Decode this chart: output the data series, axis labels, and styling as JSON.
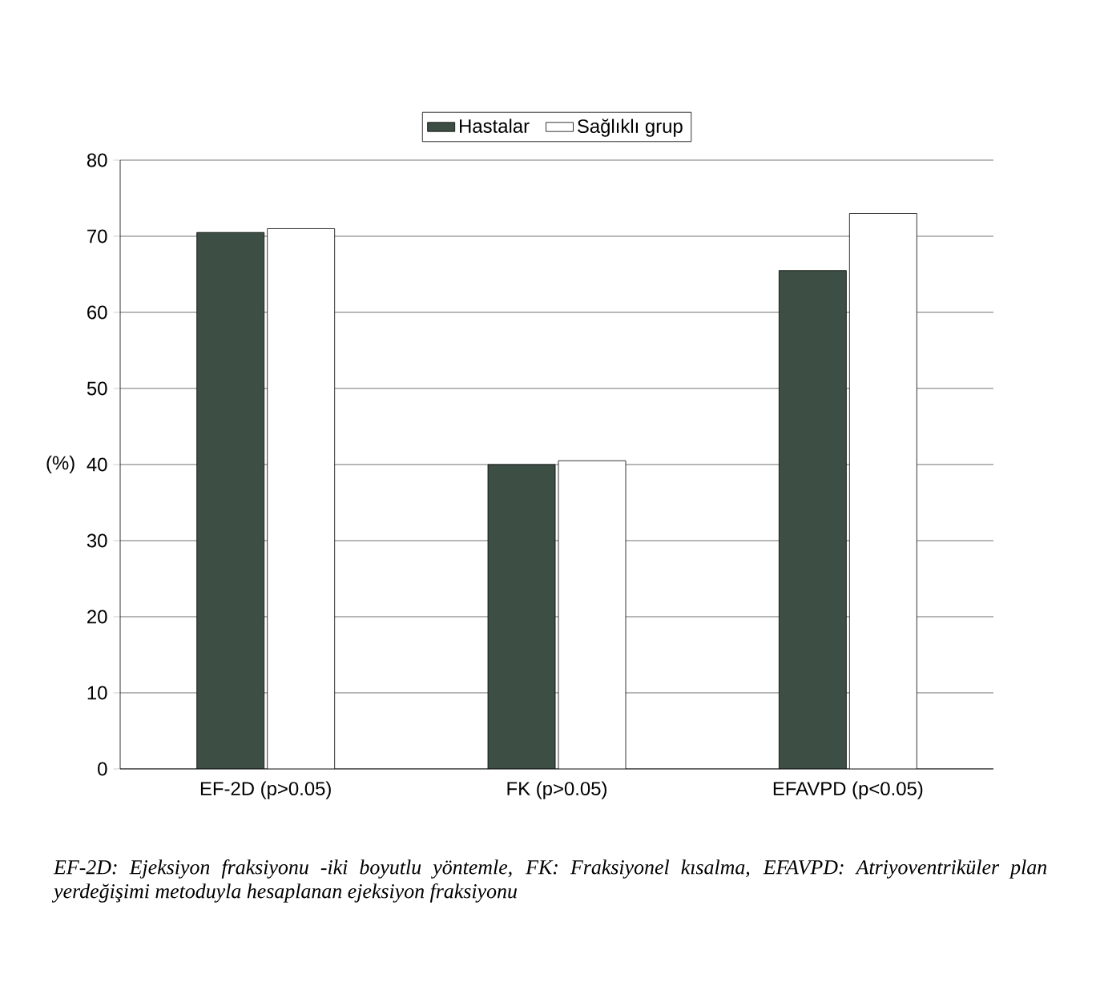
{
  "chart_data": {
    "type": "bar",
    "ylabel": "(%)",
    "categories": [
      "EF-2D (p>0.05)",
      "FK (p>0.05)",
      "EFAVPD (p<0.05)"
    ],
    "series": [
      {
        "name": "Hastalar",
        "color": "#3d4f45",
        "values": [
          70.5,
          40,
          65.5
        ]
      },
      {
        "name": "Sağlıklı grup",
        "color": "#ffffff",
        "values": [
          71,
          40.5,
          73
        ]
      }
    ],
    "ylim": [
      0,
      80
    ],
    "yticks": [
      0,
      10,
      20,
      30,
      40,
      50,
      60,
      70,
      80
    ],
    "grid": "y",
    "legend": "top",
    "annotations": [
      "EF-2D: Ejeksiyon fraksiyonu -iki boyutlu yöntemle, FK: Fraksiyonel kısalma, EFAVPD: Atriyoventriküler plan yerdeğişimi metoduyla hesaplanan ejeksiyon fraksiyonu"
    ]
  }
}
